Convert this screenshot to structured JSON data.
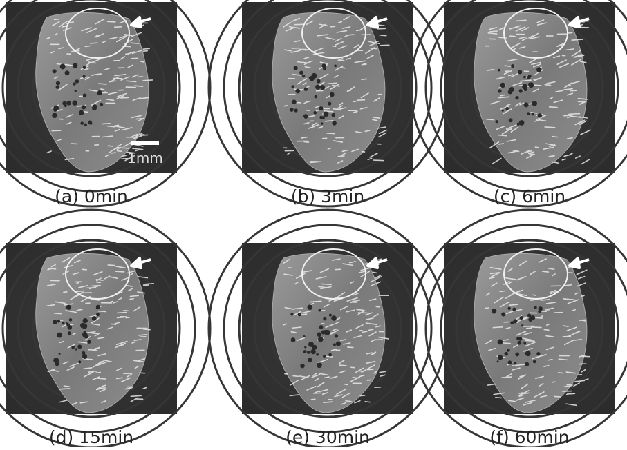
{
  "panels": [
    {
      "label": "(a) 0min"
    },
    {
      "label": "(b) 3min"
    },
    {
      "label": "(c) 6min"
    },
    {
      "label": "(d) 15min"
    },
    {
      "label": "(e) 30min"
    },
    {
      "label": "(f) 60min"
    }
  ],
  "scale_bar": "1mm"
}
